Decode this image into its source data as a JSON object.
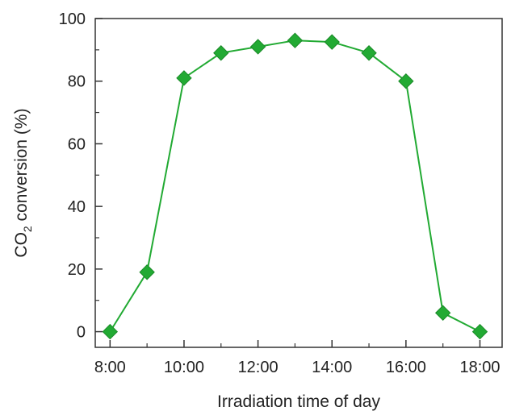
{
  "chart_data": {
    "type": "line",
    "title": "",
    "xlabel": "Irradiation time of day",
    "ylabel_main": "CO",
    "ylabel_sub": "2",
    "ylabel_rest": " conversion (%)",
    "x_tick_labels": [
      "8:00",
      "10:00",
      "12:00",
      "14:00",
      "16:00",
      "18:00"
    ],
    "x_tick_values": [
      8,
      10,
      12,
      14,
      16,
      18
    ],
    "y_tick_labels": [
      "0",
      "20",
      "40",
      "60",
      "80",
      "100"
    ],
    "y_tick_values": [
      0,
      20,
      40,
      60,
      80,
      100
    ],
    "xlim": [
      7.6,
      18.6
    ],
    "ylim": [
      -5,
      100
    ],
    "grid": false,
    "legend": "none",
    "marker": "diamond",
    "series": [
      {
        "x": [
          8,
          9,
          10,
          11,
          12,
          13,
          14,
          15,
          16,
          17,
          18
        ],
        "y": [
          0,
          19,
          81,
          89,
          91,
          93,
          92.5,
          89,
          80,
          6,
          0
        ],
        "color": "#22aa33"
      }
    ]
  }
}
